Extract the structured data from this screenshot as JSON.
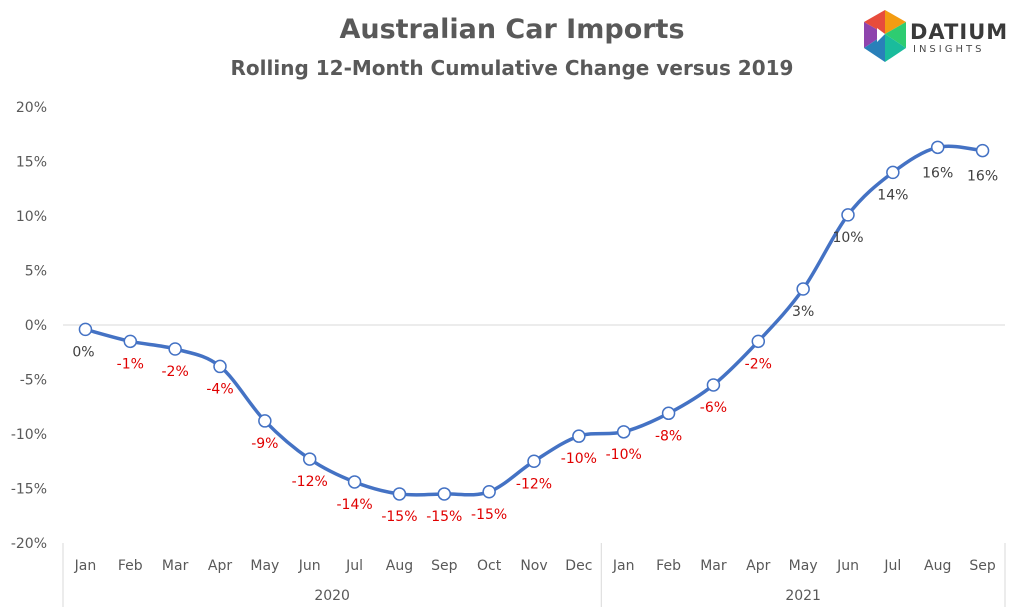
{
  "header": {
    "title": "Australian Car Imports",
    "subtitle": "Rolling 12-Month Cumulative Change versus 2019"
  },
  "logo": {
    "word": "DATIUM",
    "sub": "INSIGHTS"
  },
  "colors": {
    "line": "#4472C4",
    "negative_label": "#e00000",
    "positive_label": "#404040",
    "axis_text": "#595959"
  },
  "chart_data": {
    "type": "line",
    "title": "Australian Car Imports",
    "subtitle": "Rolling 12-Month Cumulative Change versus 2019",
    "categories": [
      "Jan",
      "Feb",
      "Mar",
      "Apr",
      "May",
      "Jun",
      "Jul",
      "Aug",
      "Sep",
      "Oct",
      "Nov",
      "Dec",
      "Jan",
      "Feb",
      "Mar",
      "Apr",
      "May",
      "Jun",
      "Jul",
      "Aug",
      "Sep"
    ],
    "groups": [
      {
        "label": "2020",
        "count": 12
      },
      {
        "label": "2021",
        "count": 9
      }
    ],
    "series": [
      {
        "values": [
          -0.4,
          -1.5,
          -2.2,
          -3.8,
          -8.8,
          -12.3,
          -14.4,
          -15.5,
          -15.5,
          -15.3,
          -12.5,
          -10.2,
          -9.8,
          -8.1,
          -5.5,
          -1.5,
          3.3,
          10.1,
          14.0,
          16.3,
          16.0
        ],
        "labels": [
          "0%",
          "-1%",
          "-2%",
          "-4%",
          "-9%",
          "-12%",
          "-14%",
          "-15%",
          "-15%",
          "-15%",
          "-12%",
          "-10%",
          "-10%",
          "-8%",
          "-6%",
          "-2%",
          "3%",
          "10%",
          "14%",
          "16%",
          "16%"
        ]
      }
    ],
    "ylim": [
      -20,
      20
    ],
    "yticks": [
      -20,
      -15,
      -10,
      -5,
      0,
      5,
      10,
      15,
      20
    ],
    "ytick_labels": [
      "-20%",
      "-15%",
      "-10%",
      "-5%",
      "0%",
      "5%",
      "10%",
      "15%",
      "20%"
    ],
    "grid": false,
    "legend": "none"
  }
}
